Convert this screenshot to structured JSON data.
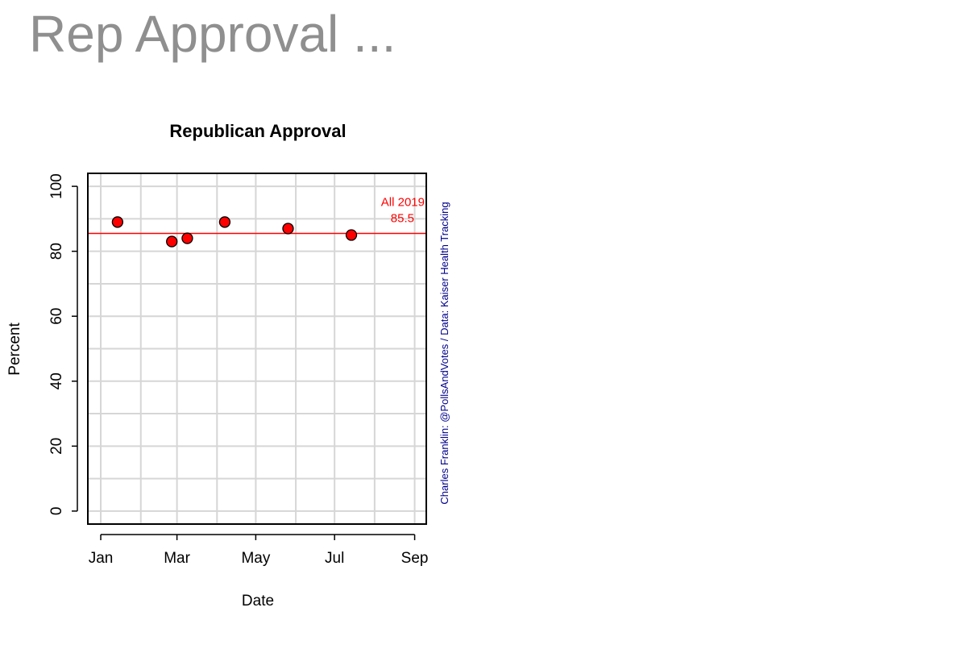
{
  "page": {
    "title": "Rep Approval ..."
  },
  "chart_data": {
    "type": "scatter",
    "title": "Republican Approval",
    "xlabel": "Date",
    "ylabel": "Percent",
    "x_tick_labels": [
      "Jan",
      "Mar",
      "May",
      "Jul",
      "Sep"
    ],
    "x_ticks": [
      "2019-01-01",
      "2019-03-01",
      "2019-05-01",
      "2019-07-01",
      "2019-09-01"
    ],
    "xlim": [
      "2018-12-22",
      "2019-09-10"
    ],
    "y_ticks": [
      0,
      20,
      40,
      60,
      80,
      100
    ],
    "ylim": [
      -4,
      104
    ],
    "grid": true,
    "series": [
      {
        "points": [
          {
            "x": "2019-01-14",
            "y": 89
          },
          {
            "x": "2019-02-25",
            "y": 83
          },
          {
            "x": "2019-03-09",
            "y": 84
          },
          {
            "x": "2019-04-07",
            "y": 89
          },
          {
            "x": "2019-05-26",
            "y": 87
          },
          {
            "x": "2019-07-14",
            "y": 85
          }
        ],
        "color": "#ff0000"
      }
    ],
    "reference_line": {
      "y": 85.5,
      "color": "#ff0000",
      "label_top": "All 2019",
      "label_bottom": "85.5"
    },
    "credit": "Charles Franklin: @PollsAndVotes / Data: Kaiser Health Tracking",
    "credit_color": "#00008b"
  }
}
